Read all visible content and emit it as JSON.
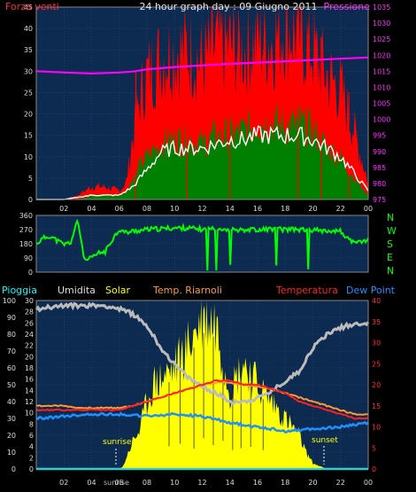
{
  "chart_data": [
    {
      "type": "area",
      "title": "24 hour graph day : 09 Giugno 2011",
      "left_label": "Forza venti",
      "right_label": "Pressione",
      "x_ticks": [
        "02",
        "04",
        "06",
        "08",
        "10",
        "12",
        "14",
        "16",
        "18",
        "20",
        "22",
        "00"
      ],
      "y_left_ticks": [
        0,
        5,
        10,
        15,
        20,
        25,
        30,
        35,
        40,
        45
      ],
      "y_right_ticks": [
        975,
        980,
        985,
        990,
        995,
        1000,
        1005,
        1010,
        1015,
        1020,
        1025,
        1030,
        1035
      ],
      "ylim_left": [
        0,
        45
      ],
      "ylim_right": [
        975,
        1035
      ],
      "x_range_hours": [
        0,
        24
      ],
      "colors": {
        "gust": "#ff0000",
        "avg": "#ffffff",
        "wind": "#008000",
        "pressure": "#ff00ff",
        "bg": "#0d2a50"
      },
      "series": [
        {
          "key": "pressure",
          "x": [
            0,
            2,
            4,
            6,
            7,
            8,
            10,
            12,
            14,
            16,
            18,
            20,
            22,
            24
          ],
          "values": [
            1015.0,
            1014.6,
            1014.3,
            1014.6,
            1014.9,
            1015.6,
            1016.3,
            1016.8,
            1017.3,
            1017.7,
            1018.1,
            1018.5,
            1018.9,
            1019.3
          ]
        },
        {
          "key": "gust_envelope",
          "x": [
            0,
            1,
            2,
            3,
            4,
            5,
            6,
            6.5,
            7,
            7.5,
            8,
            9,
            10,
            11,
            12,
            13,
            14,
            15,
            16,
            17,
            18,
            19,
            20,
            21,
            22,
            23,
            24
          ],
          "values": [
            0,
            0,
            0,
            1,
            3,
            3,
            2,
            4,
            15,
            24,
            29,
            33,
            35,
            35,
            32,
            36,
            36,
            35,
            38,
            37,
            41,
            38,
            35,
            29,
            26,
            16,
            4
          ]
        },
        {
          "key": "wind_envelope",
          "x": [
            0,
            1,
            2,
            3,
            4,
            5,
            6,
            6.5,
            7,
            7.5,
            8,
            9,
            10,
            11,
            12,
            13,
            14,
            15,
            16,
            17,
            18,
            19,
            20,
            21,
            22,
            23,
            24
          ],
          "values": [
            0,
            0,
            0,
            0,
            1,
            1,
            1,
            2,
            5,
            8,
            10,
            13,
            14,
            14,
            13,
            15,
            15,
            16,
            18,
            18,
            17,
            18,
            16,
            12,
            10,
            5,
            1
          ]
        },
        {
          "key": "avg",
          "x": [
            0,
            2,
            4,
            5,
            6,
            6.5,
            7,
            8,
            9,
            10,
            11,
            12,
            13,
            14,
            15,
            16,
            17,
            18,
            19,
            20,
            21,
            22,
            23,
            24
          ],
          "values": [
            0,
            0,
            1,
            1,
            1,
            2,
            3,
            7,
            11,
            12,
            12,
            12,
            13,
            14,
            14,
            15,
            15,
            15,
            15,
            14,
            12,
            10,
            6,
            2
          ]
        }
      ]
    },
    {
      "type": "scatter",
      "right_label_letters": [
        "N",
        "W",
        "S",
        "E",
        "N"
      ],
      "y_ticks": [
        0,
        90,
        180,
        270,
        360
      ],
      "ylim": [
        0,
        360
      ],
      "x_ticks": [
        "02",
        "04",
        "06",
        "08",
        "10",
        "12",
        "14",
        "16",
        "18",
        "20",
        "22",
        "00"
      ],
      "colors": {
        "dir": "#00ff00"
      },
      "series": [
        {
          "key": "direction",
          "x": [
            0,
            0.5,
            1,
            1.5,
            2,
            2.5,
            3,
            3.5,
            4,
            4.5,
            5,
            5.5,
            6,
            6.5,
            7,
            8,
            9,
            10,
            11,
            12,
            13,
            14,
            15,
            16,
            17,
            18,
            19,
            20,
            21,
            22,
            22.5,
            23,
            23.5,
            24
          ],
          "values": [
            180,
            215,
            230,
            200,
            175,
            190,
            330,
            70,
            90,
            120,
            130,
            210,
            270,
            250,
            260,
            270,
            275,
            280,
            280,
            270,
            280,
            270,
            270,
            270,
            275,
            270,
            270,
            265,
            265,
            260,
            215,
            180,
            195,
            205
          ]
        }
      ]
    },
    {
      "type": "area",
      "legend": [
        "Pioggia",
        "Umidita",
        "Solar",
        "Temp. Riarnoli",
        "Temperatura",
        "Dew Point"
      ],
      "y_left_ticks_rain": [
        0,
        10,
        20,
        30,
        40,
        50,
        60,
        70,
        80,
        90,
        100
      ],
      "y_left_ticks_hum": [
        0,
        2,
        4,
        6,
        8,
        10,
        12,
        14,
        16,
        18,
        20,
        22,
        24,
        26,
        28,
        30
      ],
      "y_right_ticks": [
        0,
        5,
        10,
        15,
        20,
        25,
        30,
        35,
        40
      ],
      "ylim_rain": [
        0,
        100
      ],
      "ylim_hum": [
        0,
        30
      ],
      "ylim_temp": [
        0,
        40
      ],
      "x_ticks": [
        "02",
        "04",
        "06",
        "08",
        "10",
        "12",
        "14",
        "16",
        "18",
        "20",
        "22",
        "00"
      ],
      "annotations": [
        "sunrise",
        "sunset"
      ],
      "bottom_marker": "sunrise",
      "colors": {
        "rain": "#00ffff",
        "hum": "#bbbbbb",
        "solar": "#ffff00",
        "temp": "#ff2020",
        "riarnoli": "#ff9933",
        "dew": "#1e90ff"
      },
      "series": [
        {
          "key": "humidity",
          "x": [
            0,
            1,
            2,
            3,
            4,
            5,
            6,
            7,
            8,
            9,
            10,
            11,
            12,
            13,
            14,
            15,
            16,
            17,
            18,
            19,
            20,
            21,
            22,
            23,
            24
          ],
          "values": [
            95,
            96,
            97,
            97,
            97,
            97,
            95,
            92,
            85,
            72,
            62,
            54,
            49,
            45,
            40,
            40,
            42,
            46,
            52,
            58,
            72,
            80,
            84,
            86,
            87
          ]
        },
        {
          "key": "solar",
          "x": [
            0,
            5.5,
            6,
            6.3,
            6.5,
            7,
            7.5,
            8,
            8.5,
            9,
            10,
            11,
            12,
            13,
            14,
            15,
            16,
            17,
            18,
            19,
            19.5,
            20,
            20.5,
            21,
            21.5,
            24
          ],
          "values": [
            0,
            0,
            0,
            0.5,
            2,
            5,
            7,
            12,
            15,
            16,
            18,
            22,
            27,
            26,
            14,
            19,
            15,
            12,
            9,
            6,
            3,
            1,
            0.5,
            0,
            0,
            0
          ]
        },
        {
          "key": "temperatura",
          "x": [
            0,
            1,
            2,
            3,
            4,
            5,
            6,
            7,
            8,
            9,
            10,
            11,
            12,
            13,
            14,
            15,
            16,
            17,
            18,
            19,
            20,
            21,
            22,
            23,
            24
          ],
          "values": [
            14,
            14,
            14,
            14,
            14,
            14,
            14,
            15,
            16,
            17,
            18,
            19,
            20,
            21,
            21,
            20,
            20,
            19,
            18,
            16,
            15,
            14,
            13,
            12,
            12
          ]
        },
        {
          "key": "riarnoli",
          "x": [
            0,
            1,
            2,
            3,
            4,
            5,
            6,
            7,
            8,
            9,
            10,
            11,
            12,
            13,
            14,
            15,
            16,
            17,
            18,
            19,
            20,
            21,
            22,
            23,
            24
          ],
          "values": [
            15,
            15,
            15,
            14.5,
            14.5,
            14.5,
            14.5,
            15,
            16,
            17,
            18,
            19,
            20,
            20.5,
            20.5,
            20,
            19.5,
            19,
            18,
            17,
            16,
            15,
            14,
            13,
            13
          ]
        },
        {
          "key": "dewpoint",
          "x": [
            0,
            2,
            4,
            6,
            8,
            10,
            12,
            14,
            16,
            18,
            20,
            22,
            24
          ],
          "values": [
            12,
            12.5,
            13,
            13,
            12.5,
            13,
            12.5,
            11,
            10,
            9,
            9.5,
            10,
            11
          ]
        },
        {
          "key": "rain",
          "x": [
            0,
            24
          ],
          "values": [
            0,
            0
          ]
        }
      ]
    }
  ]
}
